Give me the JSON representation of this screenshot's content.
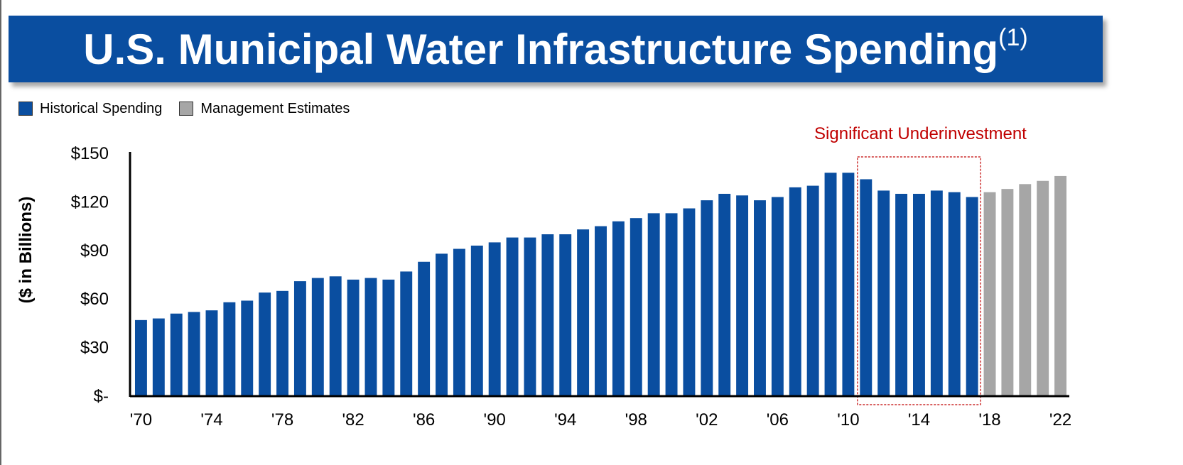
{
  "title": {
    "text": "U.S. Municipal Water Infrastructure Spending",
    "superscript": "(1)"
  },
  "legend": [
    {
      "label": "Historical Spending",
      "color": "#0a4ea0"
    },
    {
      "label": "Management Estimates",
      "color": "#a6a6a6"
    }
  ],
  "annotation": {
    "text": "Significant Underinvestment",
    "color": "#c00000",
    "x_range": [
      "2011",
      "2017"
    ]
  },
  "chart_data": {
    "type": "bar",
    "ylabel": "($ in Billions)",
    "ylim": [
      0,
      150
    ],
    "yticks": [
      {
        "value": 0,
        "label": "$-"
      },
      {
        "value": 30,
        "label": "$30"
      },
      {
        "value": 60,
        "label": "$60"
      },
      {
        "value": 90,
        "label": "$90"
      },
      {
        "value": 120,
        "label": "$120"
      },
      {
        "value": 150,
        "label": "$150"
      }
    ],
    "xtick_labels": [
      {
        "year": "1970",
        "label": "'70"
      },
      {
        "year": "1974",
        "label": "'74"
      },
      {
        "year": "1978",
        "label": "'78"
      },
      {
        "year": "1982",
        "label": "'82"
      },
      {
        "year": "1986",
        "label": "'86"
      },
      {
        "year": "1990",
        "label": "'90"
      },
      {
        "year": "1994",
        "label": "'94"
      },
      {
        "year": "1998",
        "label": "'98"
      },
      {
        "year": "2002",
        "label": "'02"
      },
      {
        "year": "2006",
        "label": "'06"
      },
      {
        "year": "2010",
        "label": "'10"
      },
      {
        "year": "2014",
        "label": "'14"
      },
      {
        "year": "2018",
        "label": "'18"
      },
      {
        "year": "2022",
        "label": "'22"
      }
    ],
    "categories": [
      "1970",
      "1971",
      "1972",
      "1973",
      "1974",
      "1975",
      "1976",
      "1977",
      "1978",
      "1979",
      "1980",
      "1981",
      "1982",
      "1983",
      "1984",
      "1985",
      "1986",
      "1987",
      "1988",
      "1989",
      "1990",
      "1991",
      "1992",
      "1993",
      "1994",
      "1995",
      "1996",
      "1997",
      "1998",
      "1999",
      "2000",
      "2001",
      "2002",
      "2003",
      "2004",
      "2005",
      "2006",
      "2007",
      "2008",
      "2009",
      "2010",
      "2011",
      "2012",
      "2013",
      "2014",
      "2015",
      "2016",
      "2017",
      "2018",
      "2019",
      "2020",
      "2021",
      "2022"
    ],
    "series": [
      {
        "name": "Historical Spending",
        "color": "#0a4ea0",
        "values": [
          47,
          48,
          51,
          52,
          53,
          58,
          59,
          64,
          65,
          71,
          73,
          74,
          72,
          73,
          72,
          77,
          83,
          88,
          91,
          93,
          95,
          98,
          98,
          100,
          100,
          103,
          105,
          108,
          110,
          113,
          113,
          116,
          121,
          125,
          124,
          121,
          123,
          129,
          130,
          138,
          138,
          134,
          127,
          125,
          125,
          127,
          126,
          123,
          null,
          null,
          null,
          null,
          null
        ]
      },
      {
        "name": "Management Estimates",
        "color": "#a6a6a6",
        "values": [
          null,
          null,
          null,
          null,
          null,
          null,
          null,
          null,
          null,
          null,
          null,
          null,
          null,
          null,
          null,
          null,
          null,
          null,
          null,
          null,
          null,
          null,
          null,
          null,
          null,
          null,
          null,
          null,
          null,
          null,
          null,
          null,
          null,
          null,
          null,
          null,
          null,
          null,
          null,
          null,
          null,
          null,
          null,
          null,
          null,
          null,
          null,
          null,
          126,
          128,
          131,
          133,
          136
        ]
      }
    ]
  }
}
